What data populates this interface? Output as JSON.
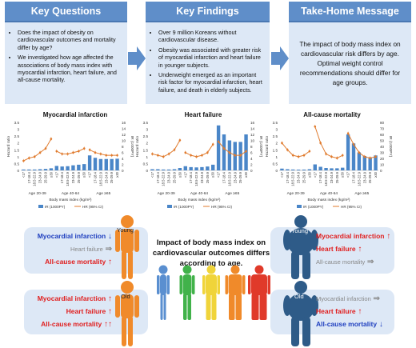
{
  "top": {
    "questions": {
      "title": "Key Questions",
      "items": [
        "Does the impact of obesity on cardiovascular outcomes and mortality differ by age?",
        "We investigated how age affected the associations of body mass index with myocardial infarction, heart failure, and all-cause mortality."
      ]
    },
    "findings": {
      "title": "Key Findings",
      "items": [
        "Over 9 million Koreans without cardiovascular disease.",
        "Obesity was associated with greater risk of myocardial infarction and heart failure in younger subjects.",
        "Underweight emerged as an important risk factor for myocardial infarction, heart failure, and death in elderly subjects."
      ]
    },
    "message": {
      "title": "Take-Home Message",
      "text": "The impact of body mass index on cardiovascular risk differs by age. Optimal weight control recommendations should differ for age groups."
    },
    "colors": {
      "header": "#5f8ec9",
      "panel": "#dde8f6",
      "arrow": "#5f8ec9"
    }
  },
  "charts_common": {
    "yleft_label": "Hazard ratio",
    "yright_label": "IR (1000PY)",
    "xlabel": "Body mass index (kg/m²)",
    "bmi_categories": [
      "<17",
      "17-18.4",
      "18.5-22.9",
      "23-24.9",
      "25-29.9",
      "≥30"
    ],
    "age_groups": [
      "Age 20-39",
      "Age 40-64",
      "Age ≥65"
    ],
    "legend": {
      "bar": "IR (1000PY)",
      "line": "HR (95% CI)"
    },
    "colors": {
      "bar": "#4a86c8",
      "line": "#e07b2e"
    }
  },
  "chart_data": [
    {
      "type": "bar",
      "title": "Myocardial infarction",
      "ylim_left": [
        0,
        3.5
      ],
      "ylim_right": [
        0,
        16
      ],
      "ticks_left": [
        "0",
        "0.5",
        "1",
        "1.5",
        "2",
        "2.5",
        "3",
        "3.5"
      ],
      "ticks_right": [
        "0",
        "2",
        "4",
        "6",
        "8",
        "10",
        "12",
        "14",
        "16"
      ],
      "ir": [
        0.3,
        0.3,
        0.3,
        0.4,
        0.5,
        0.7,
        1.5,
        1.3,
        1.4,
        1.7,
        1.9,
        2.1,
        5.0,
        4.2,
        3.8,
        3.8,
        3.8,
        3.9
      ],
      "hr": [
        0.7,
        0.9,
        1.0,
        1.3,
        1.6,
        2.3,
        1.4,
        1.2,
        1.2,
        1.3,
        1.4,
        1.6,
        1.5,
        1.3,
        1.2,
        1.1,
        1.1,
        1.1
      ]
    },
    {
      "type": "bar",
      "title": "Heart failure",
      "ylim_left": [
        0,
        3.5
      ],
      "ylim_right": [
        0,
        16
      ],
      "ticks_left": [
        "0",
        "0.5",
        "1",
        "1.5",
        "2",
        "2.5",
        "3",
        "3.5"
      ],
      "ticks_right": [
        "0",
        "2",
        "4",
        "6",
        "8",
        "10",
        "12",
        "14",
        "16"
      ],
      "ir": [
        0.4,
        0.4,
        0.3,
        0.3,
        0.4,
        0.8,
        1.4,
        1.1,
        1.0,
        1.1,
        1.3,
        1.9,
        15.0,
        12.0,
        10.0,
        9.5,
        9.5,
        12.0
      ],
      "hr": [
        1.2,
        1.1,
        1.0,
        1.2,
        1.5,
        2.2,
        1.3,
        1.1,
        1.0,
        1.1,
        1.3,
        1.9,
        2.1,
        1.6,
        1.3,
        1.1,
        1.1,
        1.4
      ]
    },
    {
      "type": "bar",
      "title": "All-cause mortality",
      "ylim_left": [
        0,
        3.5
      ],
      "ylim_right": [
        0,
        80
      ],
      "ticks_left": [
        "0",
        "0.5",
        "1",
        "1.5",
        "2",
        "2.5",
        "3",
        "3.5"
      ],
      "ticks_right": [
        "0",
        "10",
        "20",
        "30",
        "40",
        "50",
        "60",
        "70",
        "80"
      ],
      "ir": [
        3,
        2,
        1.5,
        1.3,
        1.4,
        2,
        10,
        6,
        4,
        3.5,
        3.5,
        4.5,
        60,
        45,
        30,
        24,
        22,
        25
      ],
      "hr": [
        2.0,
        1.5,
        1.1,
        1.0,
        1.1,
        1.4,
        3.2,
        2.0,
        1.2,
        1.0,
        0.9,
        1.1,
        2.7,
        1.9,
        1.3,
        1.0,
        0.9,
        1.0
      ]
    }
  ],
  "bottom": {
    "center_text": "Impact of body mass index on cardiovascular outcomes differs according to age.",
    "young_left": {
      "label": "Young",
      "rows": [
        {
          "text": "Myocardial infarction",
          "color": "#1f3fbf",
          "arrow": "↓",
          "arrow_color": "#1f3fbf"
        },
        {
          "text": "Heart failure",
          "color": "#888888",
          "arrow": "⇒",
          "arrow_color": "#888888"
        },
        {
          "text": "All-cause mortality",
          "color": "#e01e1e",
          "arrow": "↑",
          "arrow_color": "#e01e1e"
        }
      ]
    },
    "old_left": {
      "label": "Old",
      "rows": [
        {
          "text": "Myocardial infarction",
          "color": "#e01e1e",
          "arrow": "↑",
          "arrow_color": "#e01e1e"
        },
        {
          "text": "Heart failure",
          "color": "#e01e1e",
          "arrow": "↑",
          "arrow_color": "#e01e1e"
        },
        {
          "text": "All-cause mortality",
          "color": "#e01e1e",
          "arrow": "↑↑",
          "arrow_color": "#e01e1e"
        }
      ]
    },
    "young_right": {
      "label": "Young",
      "rows": [
        {
          "text": "Myocardial infarction",
          "color": "#e01e1e",
          "arrow": "↑",
          "arrow_color": "#e01e1e"
        },
        {
          "text": "Heart failure",
          "color": "#e01e1e",
          "arrow": "↑",
          "arrow_color": "#e01e1e"
        },
        {
          "text": "All-cause mortality",
          "color": "#888888",
          "arrow": "⇒",
          "arrow_color": "#888888"
        }
      ]
    },
    "old_right": {
      "label": "Old",
      "rows": [
        {
          "text": "Myocardial infarction",
          "color": "#888888",
          "arrow": "⇒",
          "arrow_color": "#888888"
        },
        {
          "text": "Heart failure",
          "color": "#e01e1e",
          "arrow": "↑",
          "arrow_color": "#e01e1e"
        },
        {
          "text": "All-cause mortality",
          "color": "#1f3fbf",
          "arrow": "↓",
          "arrow_color": "#1f3fbf"
        }
      ]
    },
    "figure_colors": [
      "#5a8fd0",
      "#41b24a",
      "#f0d43a",
      "#f08a2a",
      "#e03a2a"
    ],
    "lean_color": "#f08a2a",
    "obese_color": "#2e5b88"
  }
}
